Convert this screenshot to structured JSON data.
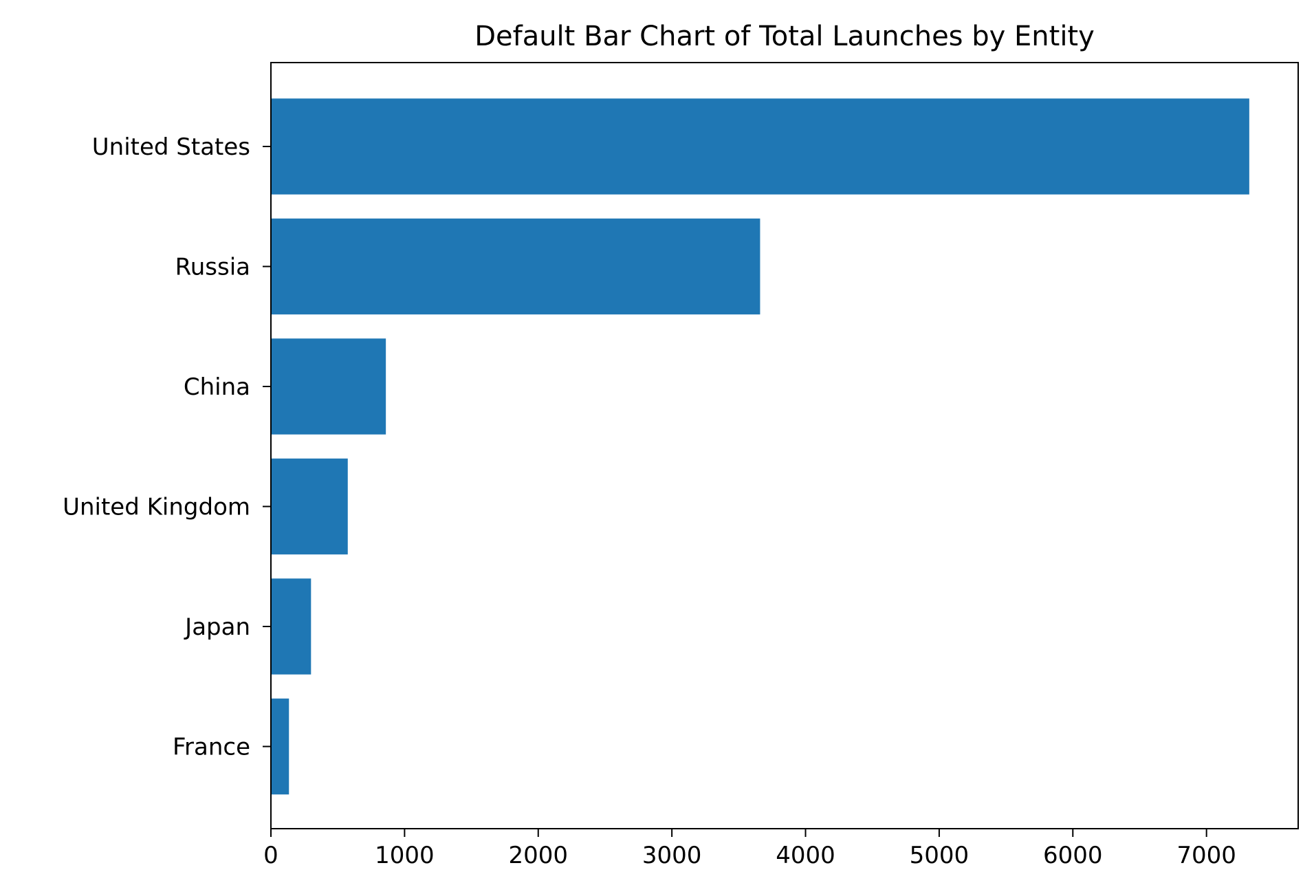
{
  "chart_data": {
    "type": "bar",
    "orientation": "horizontal",
    "title": "Default Bar Chart of Total Launches by Entity",
    "xlabel": "",
    "ylabel": "",
    "categories": [
      "United States",
      "Russia",
      "China",
      "United Kingdom",
      "Japan",
      "France"
    ],
    "values": [
      7320,
      3660,
      860,
      575,
      300,
      135
    ],
    "xlim": [
      0,
      7686
    ],
    "xticks": [
      0,
      1000,
      2000,
      3000,
      4000,
      5000,
      6000,
      7000
    ],
    "bar_color": "#1f77b4",
    "grid": false,
    "legend": "none"
  }
}
